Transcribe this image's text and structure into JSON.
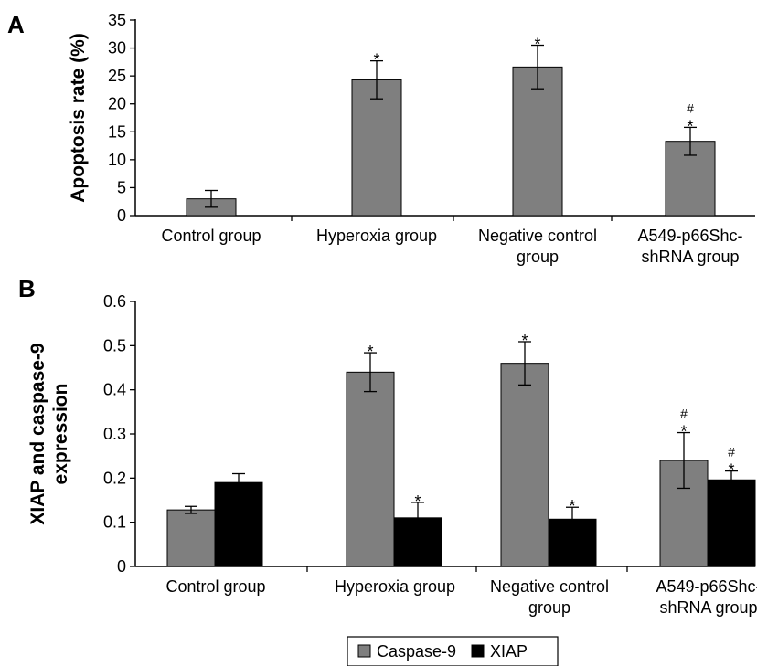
{
  "colors": {
    "caspase9": "#7f7f7f",
    "xiap": "#000000",
    "axis": "#000000"
  },
  "chart_data": [
    {
      "panel": "A",
      "type": "bar",
      "ylabel": "Apoptosis rate (%)",
      "ylim": [
        0,
        35
      ],
      "yticks": [
        0,
        5,
        10,
        15,
        20,
        25,
        30,
        35
      ],
      "categories": [
        "Control group",
        "Hyperoxia group",
        "Negative control group",
        "A549-p66Shc-shRNA group"
      ],
      "category_lines": [
        [
          "Control group"
        ],
        [
          "Hyperoxia group"
        ],
        [
          "Negative control",
          "group"
        ],
        [
          "A549-p66Shc-",
          "shRNA group"
        ]
      ],
      "series": [
        {
          "key": "caspase9",
          "values": [
            3.0,
            24.3,
            26.6,
            13.3
          ],
          "errors": [
            1.5,
            3.4,
            3.9,
            2.5
          ],
          "marks": [
            [],
            [
              "*"
            ],
            [
              "*"
            ],
            [
              "#",
              "*"
            ]
          ]
        }
      ]
    },
    {
      "panel": "B",
      "type": "bar",
      "ylabel": "XIAP and caspase-9 expression",
      "ylabel_lines": [
        "XIAP and caspase-9",
        "expression"
      ],
      "ylim": [
        0,
        0.6
      ],
      "yticks": [
        0,
        0.1,
        0.2,
        0.3,
        0.4,
        0.5,
        0.6
      ],
      "categories": [
        "Control group",
        "Hyperoxia group",
        "Negative control group",
        "A549-p66Shc-shRNA group"
      ],
      "category_lines": [
        [
          "Control group"
        ],
        [
          "Hyperoxia group"
        ],
        [
          "Negative control",
          "group"
        ],
        [
          "A549-p66Shc-",
          "shRNA group"
        ]
      ],
      "series": [
        {
          "name": "Caspase-9",
          "key": "caspase9",
          "values": [
            0.128,
            0.44,
            0.46,
            0.24
          ],
          "errors": [
            0.008,
            0.044,
            0.049,
            0.063
          ],
          "marks": [
            [],
            [
              "*"
            ],
            [
              "*"
            ],
            [
              "#",
              "*"
            ]
          ]
        },
        {
          "name": "XIAP",
          "key": "xiap",
          "values": [
            0.19,
            0.11,
            0.107,
            0.196
          ],
          "errors": [
            0.02,
            0.035,
            0.027,
            0.02
          ],
          "marks": [
            [],
            [
              "*"
            ],
            [
              "*"
            ],
            [
              "#",
              "*"
            ]
          ]
        }
      ],
      "legend": {
        "position": "bottom-center",
        "entries": [
          "Caspase-9",
          "XIAP"
        ]
      }
    }
  ]
}
